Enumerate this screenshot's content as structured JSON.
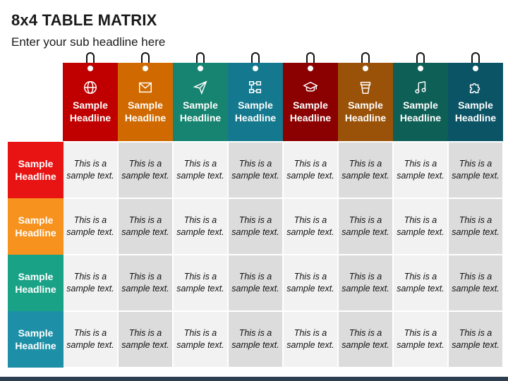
{
  "title": "8x4 TABLE MATRIX",
  "subtitle": "Enter your sub headline here",
  "columns": [
    {
      "label": "Sample Headline",
      "icon": "globe-icon",
      "color": "#c00000"
    },
    {
      "label": "Sample Headline",
      "icon": "envelope-icon",
      "color": "#d06a00"
    },
    {
      "label": "Sample Headline",
      "icon": "paper-plane-icon",
      "color": "#168470"
    },
    {
      "label": "Sample Headline",
      "icon": "network-icon",
      "color": "#14798f"
    },
    {
      "label": "Sample Headline",
      "icon": "graduation-cap-icon",
      "color": "#8b0000"
    },
    {
      "label": "Sample Headline",
      "icon": "cup-icon",
      "color": "#9a5208"
    },
    {
      "label": "Sample Headline",
      "icon": "music-note-icon",
      "color": "#0e5f55"
    },
    {
      "label": "Sample Headline",
      "icon": "puzzle-icon",
      "color": "#0b5466"
    }
  ],
  "rows": [
    {
      "label": "Sample Headline",
      "color": "#e81313"
    },
    {
      "label": "Sample Headline",
      "color": "#f7921e"
    },
    {
      "label": "Sample Headline",
      "color": "#1aa286"
    },
    {
      "label": "Sample Headline",
      "color": "#1d8fa6"
    }
  ],
  "cell_text": "This is a sample text."
}
